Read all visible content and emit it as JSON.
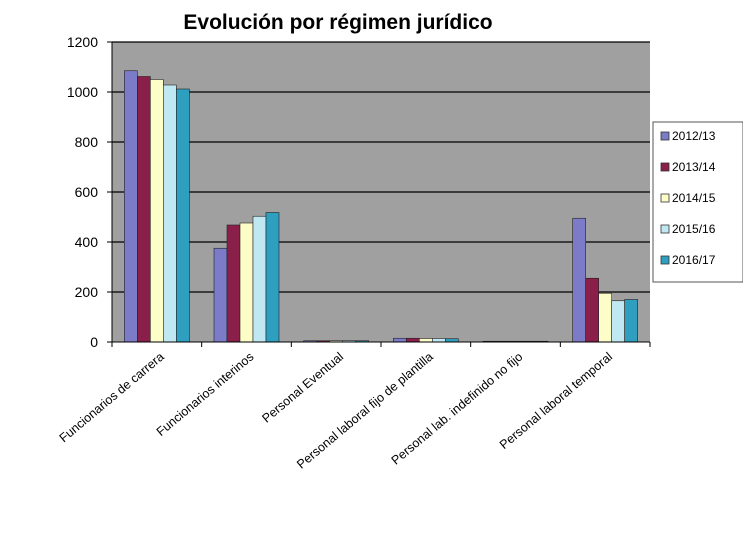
{
  "chart_data": {
    "type": "bar",
    "title": "Evolución por régimen jurídico",
    "categories": [
      "Funcionarios de carrera",
      "Funcionarios interinos",
      "Personal Eventual",
      "Personal laboral fijo de plantilla",
      "Personal lab. indefinido no fijo",
      "Personal laboral temporal"
    ],
    "series": [
      {
        "name": "2012/13",
        "color": "#7b7bc8",
        "values": [
          1085,
          375,
          5,
          15,
          3,
          495
        ]
      },
      {
        "name": "2013/14",
        "color": "#8a1f4a",
        "values": [
          1062,
          468,
          5,
          15,
          3,
          255
        ]
      },
      {
        "name": "2014/15",
        "color": "#fdfdc8",
        "values": [
          1050,
          476,
          5,
          14,
          3,
          195
        ]
      },
      {
        "name": "2015/16",
        "color": "#bfe8f2",
        "values": [
          1028,
          503,
          5,
          14,
          3,
          165
        ]
      },
      {
        "name": "2016/17",
        "color": "#2f9fc0",
        "values": [
          1012,
          518,
          5,
          13,
          3,
          170
        ]
      }
    ],
    "xlabel": "",
    "ylabel": "",
    "ylim": [
      0,
      1200
    ],
    "yticks": [
      0,
      200,
      400,
      600,
      800,
      1000,
      1200
    ],
    "grid": true,
    "legend_position": "right",
    "plot_background": "#a0a0a0"
  }
}
